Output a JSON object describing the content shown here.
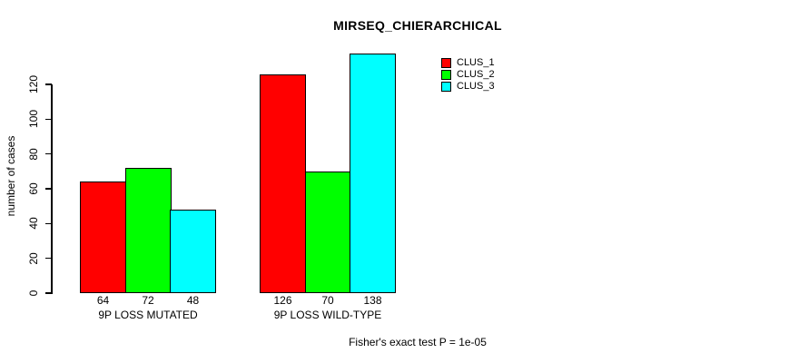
{
  "chart_data": {
    "type": "bar",
    "title": "MIRSEQ_CHIERARCHICAL",
    "ylabel": "number of cases",
    "xlabel": "",
    "categories": [
      "9P LOSS MUTATED",
      "9P LOSS WILD-TYPE"
    ],
    "series": [
      {
        "name": "CLUS_1",
        "color": "#ff0000",
        "values": [
          64,
          126
        ]
      },
      {
        "name": "CLUS_2",
        "color": "#00ff00",
        "values": [
          72,
          70
        ]
      },
      {
        "name": "CLUS_3",
        "color": "#00ffff",
        "values": [
          48,
          138
        ]
      }
    ],
    "y_ticks": [
      0,
      20,
      40,
      60,
      80,
      100,
      120
    ],
    "ylim": [
      0,
      120
    ],
    "bar_value_labels": true,
    "grid": false,
    "legend_position": "top-right",
    "note": "Fisher's exact test P = 1e-05"
  },
  "colors": {
    "background": "#ffffff",
    "axis": "#000000",
    "text": "#000000"
  }
}
